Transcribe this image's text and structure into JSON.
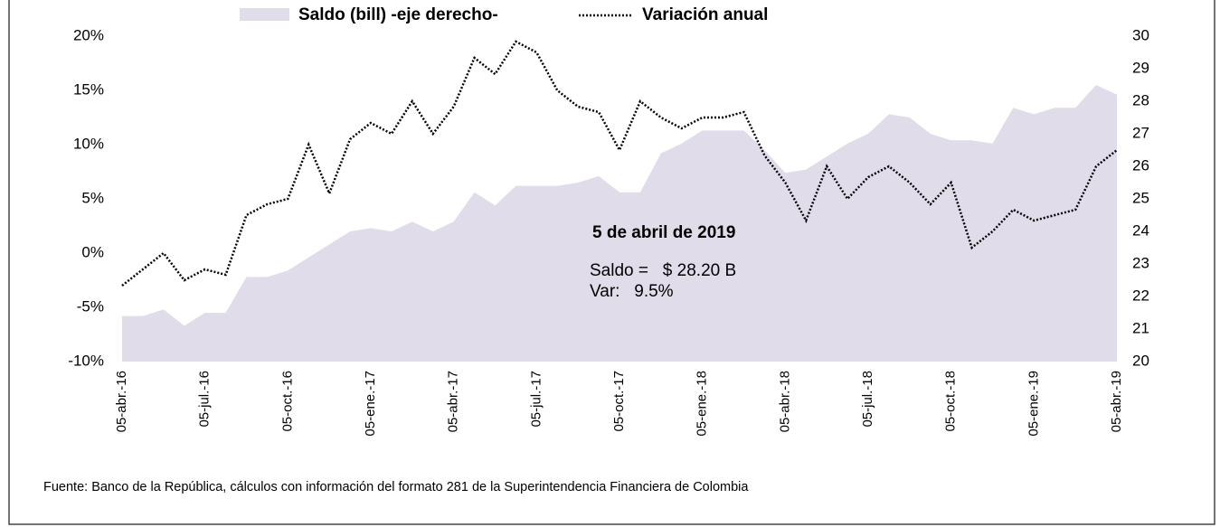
{
  "chart_data": {
    "type": "area-line",
    "categories": [
      "05-abr.-16",
      null,
      null,
      null,
      "05-jul.-16",
      null,
      null,
      null,
      "05-oct.-16",
      null,
      null,
      null,
      "05-ene.-17",
      null,
      null,
      null,
      "05-abr.-17",
      null,
      null,
      null,
      "05-jul.-17",
      null,
      null,
      null,
      "05-oct.-17",
      null,
      null,
      null,
      "05-ene.-18",
      null,
      null,
      null,
      "05-abr.-18",
      null,
      null,
      null,
      "05-jul.-18",
      null,
      null,
      null,
      "05-oct.-18",
      null,
      null,
      null,
      "05-ene.-19",
      null,
      null,
      null,
      "05-abr.-19"
    ],
    "series": [
      {
        "name": "Saldo (bill) -eje derecho-",
        "color": "#e0dcea",
        "axis": "y2",
        "values": [
          21.4,
          21.4,
          21.6,
          21.1,
          21.5,
          21.5,
          22.6,
          22.6,
          22.8,
          23.2,
          23.6,
          24.0,
          24.1,
          24.0,
          24.3,
          24.0,
          24.3,
          25.2,
          24.8,
          25.4,
          25.4,
          25.4,
          25.5,
          25.7,
          25.2,
          25.2,
          26.4,
          26.7,
          27.1,
          27.1,
          27.1,
          26.5,
          25.8,
          25.9,
          26.3,
          26.7,
          27.0,
          27.6,
          27.5,
          27.0,
          26.8,
          26.8,
          26.7,
          27.8,
          27.6,
          27.8,
          27.8,
          28.5,
          28.2
        ]
      },
      {
        "name": "Variación anual",
        "color": "#000000",
        "axis": "y",
        "values": [
          -3,
          -1.5,
          0,
          -2.5,
          -1.5,
          -2,
          3.5,
          4.5,
          5,
          10,
          5.5,
          10.5,
          12,
          11,
          14,
          11,
          13.5,
          18,
          16.5,
          19.5,
          18.5,
          15,
          13.5,
          13,
          9.5,
          14,
          12.5,
          11.5,
          12.5,
          12.5,
          13,
          9,
          6.5,
          3,
          8,
          5,
          7,
          8,
          6.5,
          4.5,
          6.5,
          0.5,
          2,
          4,
          3,
          3.5,
          4,
          8,
          9.5
        ]
      }
    ],
    "ylim": [
      -10,
      20
    ],
    "yticks": [
      {
        "value": -10,
        "label": "-10%"
      },
      {
        "value": -5,
        "label": "-5%"
      },
      {
        "value": 0,
        "label": "0%"
      },
      {
        "value": 5,
        "label": "5%"
      },
      {
        "value": 10,
        "label": "10%"
      },
      {
        "value": 15,
        "label": "15%"
      },
      {
        "value": 20,
        "label": "20%"
      }
    ],
    "y2lim": [
      20,
      30
    ],
    "y2ticks": [
      20,
      21,
      22,
      23,
      24,
      25,
      26,
      27,
      28,
      29,
      30
    ],
    "annotation": {
      "title": "5 de abril de 2019",
      "line1": "Saldo =   $ 28.20 B",
      "line2": "Var:   9.5%"
    },
    "source": "Fuente:  Banco de la República, cálculos con información del formato 281 de la Superintendencia Financiera de Colombia"
  }
}
